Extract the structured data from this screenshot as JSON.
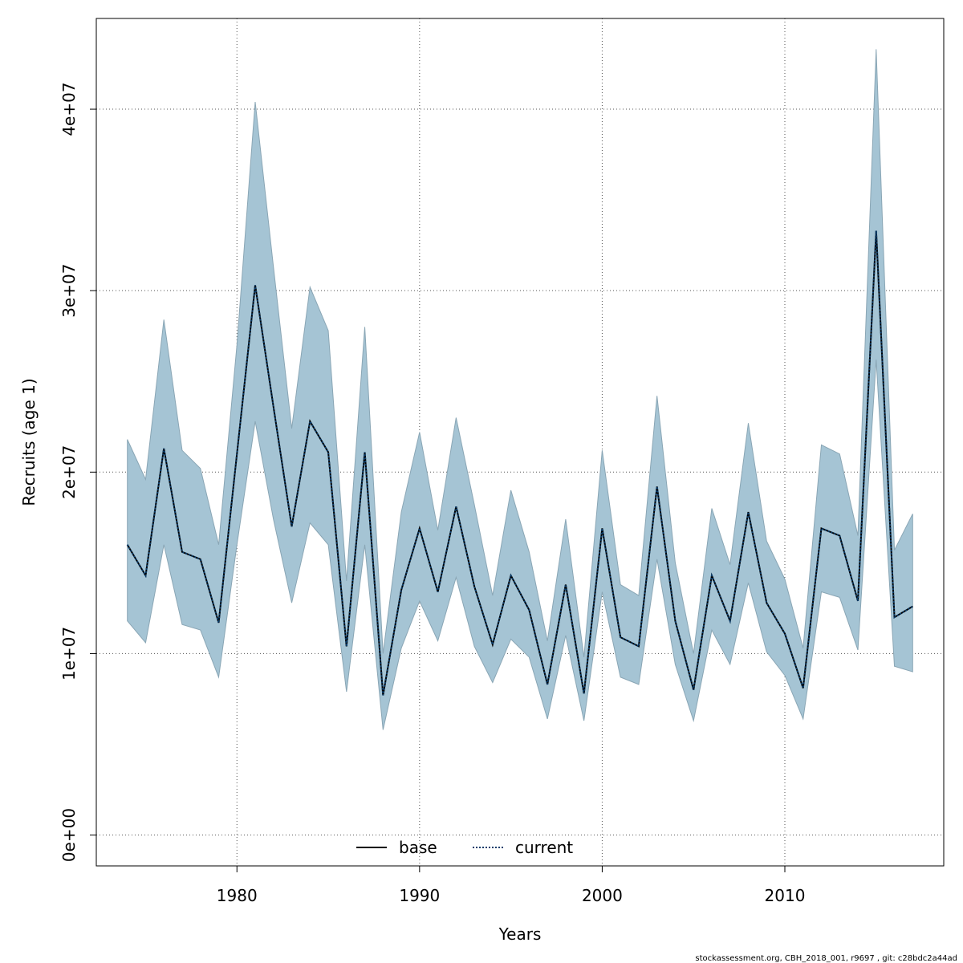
{
  "chart_data": {
    "type": "line",
    "title": "",
    "xlabel": "Years",
    "ylabel": "Recruits (age 1)",
    "xlim": [
      1972.3,
      2018.7
    ],
    "ylim": [
      -1700000,
      45000000
    ],
    "x_ticks": [
      1980,
      1990,
      2000,
      2010
    ],
    "x_tick_labels": [
      "1980",
      "1990",
      "2000",
      "2010"
    ],
    "y_ticks": [
      0,
      10000000,
      20000000,
      30000000,
      40000000
    ],
    "y_tick_labels": [
      "0e+00",
      "1e+07",
      "2e+07",
      "3e+07",
      "4e+07"
    ],
    "grid": true,
    "legend_position": "bottom",
    "colors": {
      "band_fill": "#a5c4d4",
      "band_stroke": "#8aa6b5",
      "base_line": "#000000",
      "current_line": "#0b3d6b",
      "grid": "#555555"
    },
    "x": [
      1974,
      1975,
      1976,
      1977,
      1978,
      1979,
      1980,
      1981,
      1982,
      1983,
      1984,
      1985,
      1986,
      1987,
      1988,
      1989,
      1990,
      1991,
      1992,
      1993,
      1994,
      1995,
      1996,
      1997,
      1998,
      1999,
      2000,
      2001,
      2002,
      2003,
      2004,
      2005,
      2006,
      2007,
      2008,
      2009,
      2010,
      2011,
      2012,
      2013,
      2014,
      2015,
      2016,
      2017
    ],
    "band": {
      "lower": [
        11800000,
        10600000,
        16000000,
        11600000,
        11300000,
        8700000,
        16000000,
        22800000,
        17400000,
        12800000,
        17200000,
        16000000,
        7900000,
        16000000,
        5800000,
        10300000,
        12900000,
        10700000,
        14200000,
        10400000,
        8400000,
        10800000,
        9800000,
        6400000,
        11000000,
        6300000,
        13400000,
        8700000,
        8300000,
        15200000,
        9400000,
        6300000,
        11300000,
        9400000,
        13900000,
        10100000,
        8800000,
        6400000,
        13400000,
        13100000,
        10200000,
        26200000,
        9300000,
        9000000
      ],
      "upper": [
        21800000,
        19600000,
        28400000,
        21200000,
        20200000,
        16000000,
        27000000,
        40400000,
        31300000,
        22400000,
        30200000,
        27800000,
        14000000,
        28000000,
        10000000,
        17800000,
        22200000,
        16800000,
        23000000,
        18200000,
        13200000,
        19000000,
        15600000,
        10700000,
        17400000,
        9800000,
        21200000,
        13800000,
        13200000,
        24200000,
        15000000,
        10000000,
        18000000,
        14900000,
        22700000,
        16200000,
        14100000,
        10300000,
        21500000,
        21000000,
        16500000,
        43300000,
        15700000,
        17700000
      ]
    },
    "series": [
      {
        "name": "base",
        "style": "solid",
        "values": [
          16000000,
          14300000,
          21300000,
          15600000,
          15200000,
          11700000,
          21000000,
          30300000,
          23600000,
          17000000,
          22800000,
          21100000,
          10400000,
          21100000,
          7700000,
          13500000,
          16900000,
          13400000,
          18100000,
          13700000,
          10500000,
          14300000,
          12400000,
          8300000,
          13800000,
          7800000,
          16900000,
          10900000,
          10400000,
          19200000,
          11800000,
          8000000,
          14300000,
          11800000,
          17800000,
          12800000,
          11100000,
          8100000,
          16900000,
          16500000,
          12900000,
          33300000,
          12000000,
          12600000
        ]
      },
      {
        "name": "current",
        "style": "dotted",
        "values": [
          16000000,
          14300000,
          21300000,
          15600000,
          15200000,
          11700000,
          21000000,
          30300000,
          23600000,
          17000000,
          22800000,
          21100000,
          10400000,
          21100000,
          7700000,
          13500000,
          16900000,
          13400000,
          18100000,
          13700000,
          10500000,
          14300000,
          12400000,
          8300000,
          13800000,
          7800000,
          16900000,
          10900000,
          10400000,
          19200000,
          11800000,
          8000000,
          14300000,
          11800000,
          17800000,
          12800000,
          11100000,
          8100000,
          16900000,
          16500000,
          12900000,
          33300000,
          12000000,
          12600000
        ]
      }
    ]
  },
  "legend": {
    "base_label": "base",
    "current_label": "current"
  },
  "footer": {
    "text": "stockassessment.org, CBH_2018_001, r9697 , git: c28bdc2a44ad"
  }
}
